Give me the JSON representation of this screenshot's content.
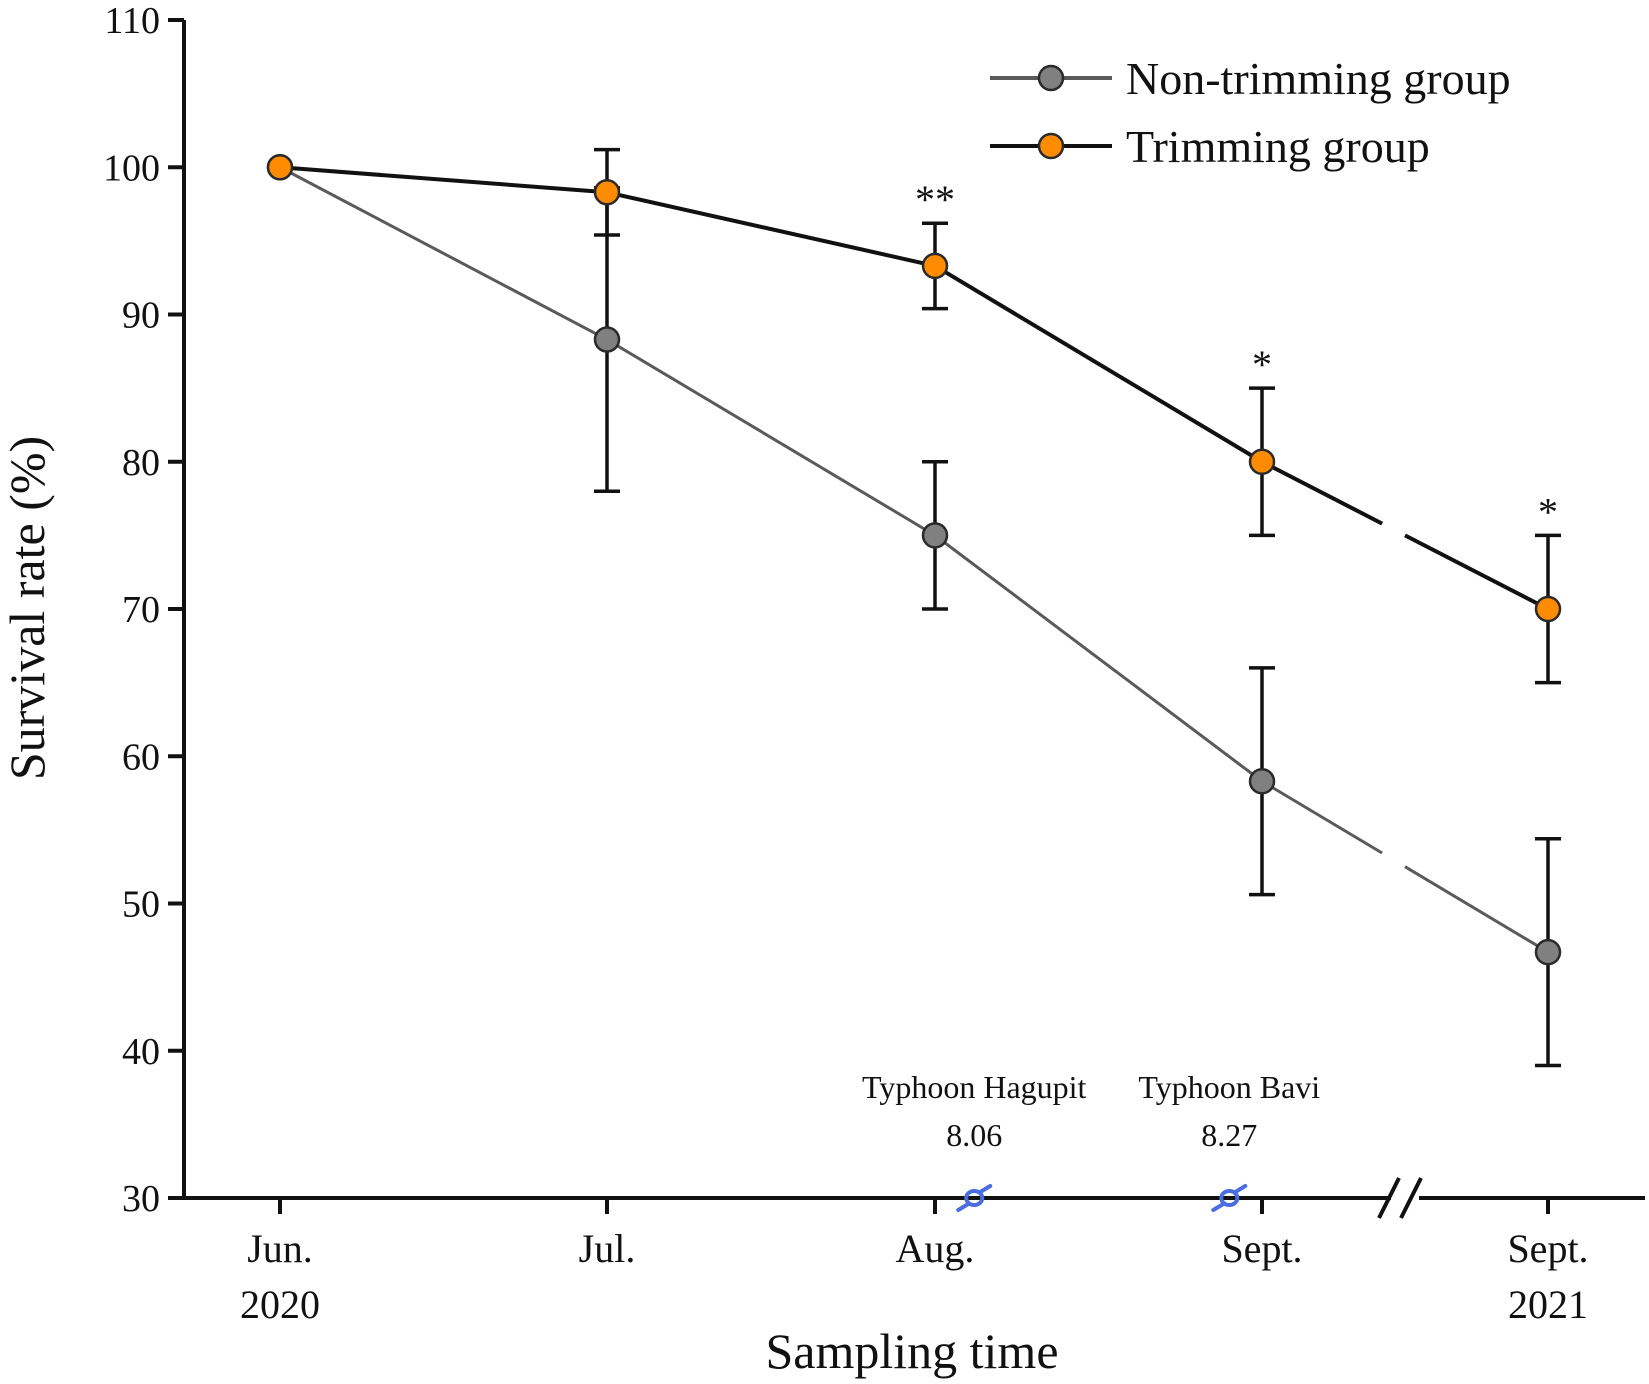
{
  "chart_data": {
    "type": "line",
    "title": "",
    "xlabel": "Sampling time",
    "ylabel": "Survival rate (%)",
    "ylim": [
      30,
      110
    ],
    "yticks": [
      30,
      40,
      50,
      60,
      70,
      80,
      90,
      100,
      110
    ],
    "grid": false,
    "legend_position": "top-right",
    "categories": [
      {
        "line1": "Jun.",
        "line2": "2020"
      },
      {
        "line1": "Jul.",
        "line2": ""
      },
      {
        "line1": "Aug.",
        "line2": ""
      },
      {
        "line1": "Sept.",
        "line2": ""
      },
      {
        "line1": "Sept.",
        "line2": "2021"
      }
    ],
    "series": [
      {
        "name": "Non-trimming group",
        "color": "#808080",
        "line_color": "#5a5a5a",
        "values": [
          100,
          88.3,
          75,
          58.3,
          46.7
        ],
        "errors": [
          0,
          10.3,
          5,
          7.7,
          7.7
        ]
      },
      {
        "name": "Trimming group",
        "color": "#ff8c00",
        "line_color": "#111111",
        "values": [
          100,
          98.3,
          93.3,
          80,
          70
        ],
        "errors": [
          0,
          2.9,
          2.9,
          5,
          5
        ]
      }
    ],
    "significance": [
      "",
      "",
      "**",
      "*",
      "*"
    ],
    "axis_break": {
      "after_category": 3
    },
    "annotations": [
      {
        "name": "Typhoon Hagupit",
        "date": "8.06",
        "x_position": 2.12,
        "icon_color": "#4a6ee0"
      },
      {
        "name": "Typhoon Bavi",
        "date": "8.27",
        "x_position": 2.9,
        "icon_color": "#4a6ee0"
      }
    ]
  }
}
